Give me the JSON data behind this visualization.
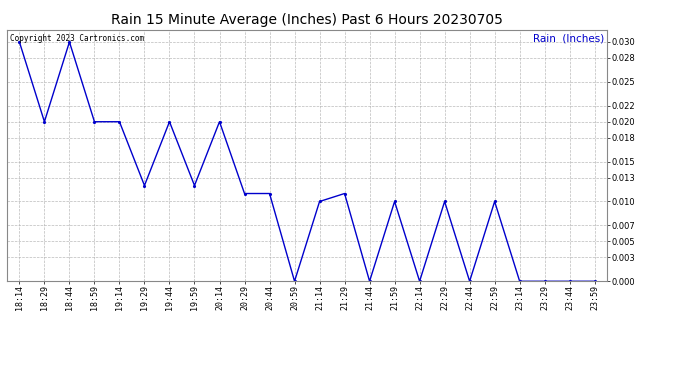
{
  "title": "Rain 15 Minute Average (Inches) Past 6 Hours 20230705",
  "copyright_text": "Copyright 2023 Cartronics.com",
  "legend_label": "Rain  (Inches)",
  "background_color": "#ffffff",
  "line_color": "#0000cc",
  "grid_color": "#aaaaaa",
  "title_color": "#000000",
  "copyright_color": "#000000",
  "legend_color": "#0000cc",
  "x_labels": [
    "18:14",
    "18:29",
    "18:44",
    "18:59",
    "19:14",
    "19:29",
    "19:44",
    "19:59",
    "20:14",
    "20:29",
    "20:44",
    "20:59",
    "21:14",
    "21:29",
    "21:44",
    "21:59",
    "22:14",
    "22:29",
    "22:44",
    "22:59",
    "23:14",
    "23:29",
    "23:44",
    "23:59"
  ],
  "y_values": [
    0.03,
    0.02,
    0.03,
    0.02,
    0.02,
    0.012,
    0.02,
    0.012,
    0.02,
    0.011,
    0.011,
    0.0,
    0.01,
    0.011,
    0.0,
    0.01,
    0.0,
    0.01,
    0.0,
    0.01,
    0.0,
    0.0,
    0.0,
    0.0
  ],
  "ylim": [
    0.0,
    0.0315
  ],
  "yticks": [
    0.0,
    0.003,
    0.005,
    0.007,
    0.01,
    0.013,
    0.015,
    0.018,
    0.02,
    0.022,
    0.025,
    0.028,
    0.03
  ],
  "marker_size": 2.5,
  "line_width": 1.0,
  "title_fontsize": 10,
  "tick_fontsize": 6,
  "legend_fontsize": 7.5
}
